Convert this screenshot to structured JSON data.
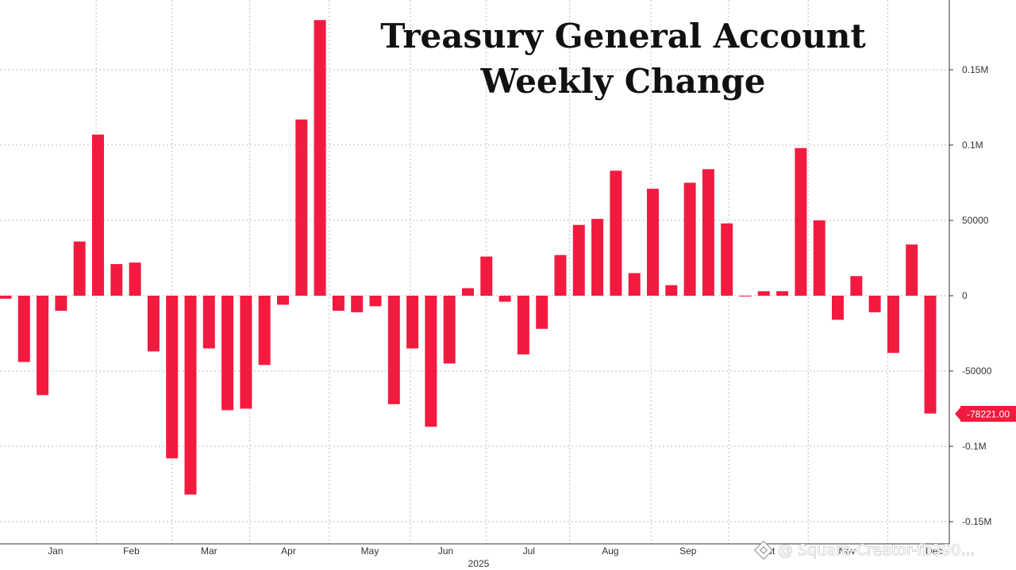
{
  "chart_data": {
    "type": "bar",
    "title_lines": [
      "Treasury General Account",
      "Weekly Change"
    ],
    "xlabel": "2025",
    "ylabel": "",
    "ylim": [
      -165000,
      195000
    ],
    "grid": true,
    "bar_color": "#f21b3f",
    "y_ticks": [
      {
        "value": 150000,
        "label": "0.15M"
      },
      {
        "value": 100000,
        "label": "0.1M"
      },
      {
        "value": 50000,
        "label": "50000"
      },
      {
        "value": 0,
        "label": "0"
      },
      {
        "value": -50000,
        "label": "-50000"
      },
      {
        "value": -100000,
        "label": "-0.1M"
      },
      {
        "value": -150000,
        "label": "-0.15M"
      }
    ],
    "month_labels": [
      {
        "label": "Jan",
        "week": 2.7
      },
      {
        "label": "Feb",
        "week": 6.8
      },
      {
        "label": "Mar",
        "week": 11.0
      },
      {
        "label": "Apr",
        "week": 15.3
      },
      {
        "label": "May",
        "week": 19.7
      },
      {
        "label": "Jun",
        "week": 23.8
      },
      {
        "label": "Jul",
        "week": 28.3
      },
      {
        "label": "Aug",
        "week": 32.7
      },
      {
        "label": "Sep",
        "week": 36.9
      },
      {
        "label": "Oct",
        "week": 41.2
      },
      {
        "label": "Nov",
        "week": 45.5
      },
      {
        "label": "Dec",
        "week": 50.2
      }
    ],
    "values": [
      -2000,
      -44000,
      -66000,
      -10000,
      36000,
      107000,
      21000,
      22000,
      -37000,
      -108000,
      -132000,
      -35000,
      -76000,
      -75000,
      -46000,
      -6000,
      117000,
      183000,
      -10000,
      -11000,
      -7000,
      -72000,
      -35000,
      -87000,
      -45000,
      5000,
      26000,
      -4000,
      -39000,
      -22000,
      27000,
      47000,
      51000,
      83000,
      15000,
      71000,
      7000,
      75000,
      84000,
      48000,
      0,
      3000,
      3000,
      98000,
      50000,
      -16000,
      13000,
      -11000,
      -38000,
      34000,
      -78221
    ],
    "last_value_label": "-78221.00",
    "last_value_color": "#f21b3f"
  },
  "watermark": {
    "icon": "binance-logo-icon",
    "text": "@ Square-Creator-fb390..."
  }
}
